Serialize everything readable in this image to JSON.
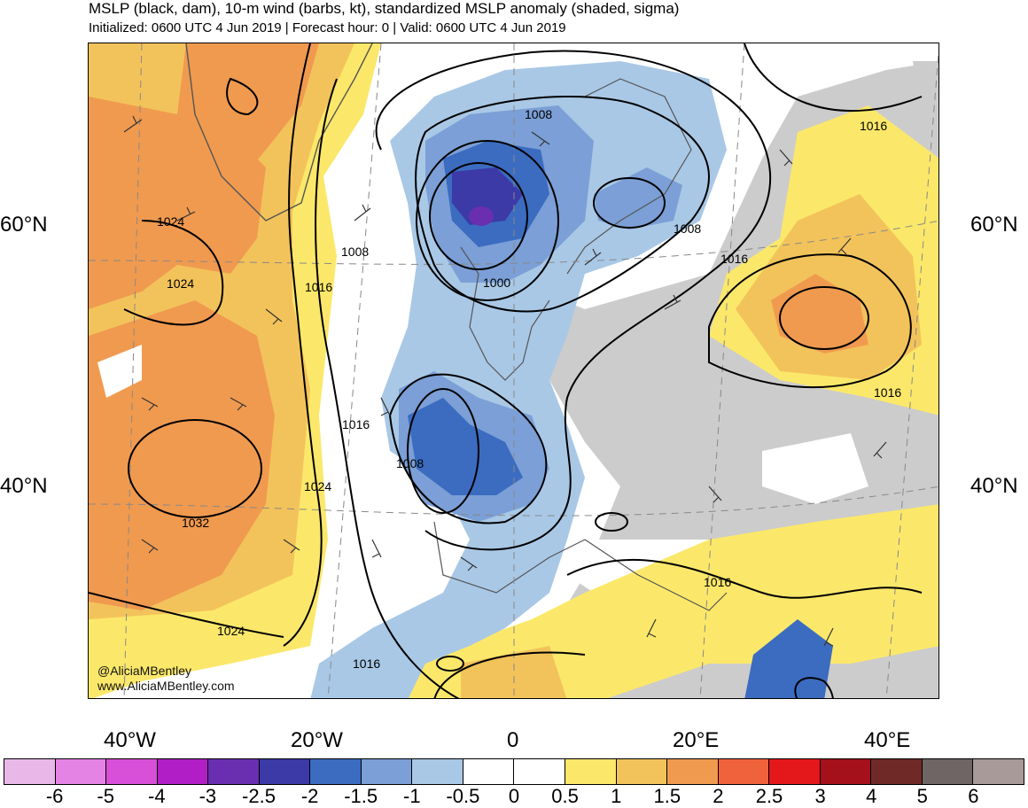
{
  "header": {
    "title": "MSLP (black, dam), 10-m wind (barbs, kt), standardized MSLP anomaly (shaded, sigma)",
    "subtitle": "Initialized: 0600 UTC 4 Jun 2019 | Forecast hour: 0 | Valid: 0600 UTC 4 Jun 2019"
  },
  "map": {
    "lat_labels": {
      "n60_left": "60°N",
      "n60_right": "60°N",
      "n40_left": "40°N",
      "n40_right": "40°N"
    },
    "lon_labels": {
      "w40": "40°W",
      "w20": "20°W",
      "zero": "0",
      "e20": "20°E",
      "e40": "40°E"
    },
    "isobar_labels": {
      "l1024a": "1024",
      "l1024b": "1024",
      "l1024c": "1024",
      "l1024d": "1024",
      "l1032": "1032",
      "l1016a": "1016",
      "l1016b": "1016",
      "l1016c": "1016",
      "l1016d": "1016",
      "l1016e": "1016",
      "l1016f": "1016",
      "l1016g": "1016",
      "l1008a": "1008",
      "l1008b": "1008",
      "l1008c": "1008",
      "l1008d": "1008",
      "l1000": "1000"
    },
    "credit_handle": "@AliciaMBentley",
    "credit_url": "www.AliciaMBentley.com"
  },
  "colorbar": {
    "labels": [
      "-6",
      "-5",
      "-4",
      "-3",
      "-2.5",
      "-2",
      "-1.5",
      "-1",
      "-0.5",
      "0",
      "0.5",
      "1",
      "1.5",
      "2",
      "2.5",
      "3",
      "4",
      "5",
      "6"
    ],
    "colors": [
      "#e9b8e9",
      "#e583e5",
      "#d84fd8",
      "#b21ec6",
      "#6a2fb0",
      "#3b3aa7",
      "#3b6cc0",
      "#7b9fd6",
      "#a9c8e6",
      "#ffffff",
      "#ffffff",
      "#fbe86a",
      "#f3c35b",
      "#f09a4f",
      "#f0623b",
      "#e4181b",
      "#a4111a",
      "#6f2a27",
      "#6f6564",
      "#a79a98"
    ]
  }
}
